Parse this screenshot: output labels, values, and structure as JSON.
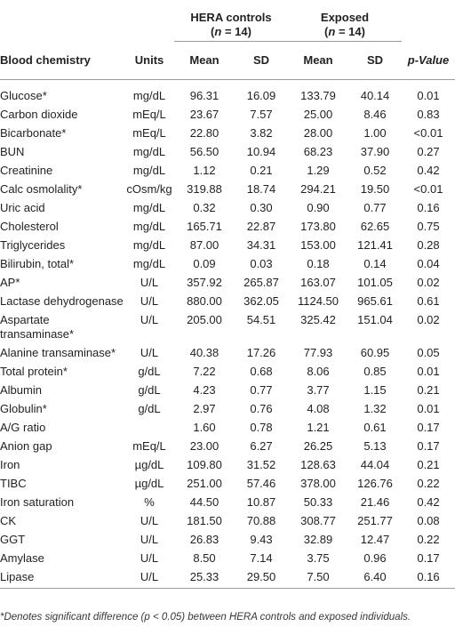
{
  "groups": {
    "controls_line1": "HERA controls",
    "controls_line2": "(n = 14)",
    "exposed_line1": "Exposed",
    "exposed_line2": "(n = 14)"
  },
  "headers": {
    "name": "Blood chemistry",
    "units": "Units",
    "mean1": "Mean",
    "sd1": "SD",
    "mean2": "Mean",
    "sd2": "SD",
    "p": "p-Value"
  },
  "rows": [
    {
      "name": "Glucose*",
      "units": "mg/dL",
      "m1": "96.31",
      "s1": "16.09",
      "m2": "133.79",
      "s2": "40.14",
      "p": "0.01"
    },
    {
      "name": "Carbon dioxide",
      "units": "mEq/L",
      "m1": "23.67",
      "s1": "7.57",
      "m2": "25.00",
      "s2": "8.46",
      "p": "0.83"
    },
    {
      "name": "Bicarbonate*",
      "units": "mEq/L",
      "m1": "22.80",
      "s1": "3.82",
      "m2": "28.00",
      "s2": "1.00",
      "p": "<0.01"
    },
    {
      "name": "BUN",
      "units": "mg/dL",
      "m1": "56.50",
      "s1": "10.94",
      "m2": "68.23",
      "s2": "37.90",
      "p": "0.27"
    },
    {
      "name": "Creatinine",
      "units": "mg/dL",
      "m1": "1.12",
      "s1": "0.21",
      "m2": "1.29",
      "s2": "0.52",
      "p": "0.42"
    },
    {
      "name": "Calc osmolality*",
      "units": "cOsm/kg",
      "m1": "319.88",
      "s1": "18.74",
      "m2": "294.21",
      "s2": "19.50",
      "p": "<0.01"
    },
    {
      "name": "Uric acid",
      "units": "mg/dL",
      "m1": "0.32",
      "s1": "0.30",
      "m2": "0.90",
      "s2": "0.77",
      "p": "0.16"
    },
    {
      "name": "Cholesterol",
      "units": "mg/dL",
      "m1": "165.71",
      "s1": "22.87",
      "m2": "173.80",
      "s2": "62.65",
      "p": "0.75"
    },
    {
      "name": "Triglycerides",
      "units": "mg/dL",
      "m1": "87.00",
      "s1": "34.31",
      "m2": "153.00",
      "s2": "121.41",
      "p": "0.28"
    },
    {
      "name": "Bilirubin, total*",
      "units": "mg/dL",
      "m1": "0.09",
      "s1": "0.03",
      "m2": "0.18",
      "s2": "0.14",
      "p": "0.04"
    },
    {
      "name": "AP*",
      "units": "U/L",
      "m1": "357.92",
      "s1": "265.87",
      "m2": "163.07",
      "s2": "101.05",
      "p": "0.02"
    },
    {
      "name": "Lactase dehydrogenase",
      "units": "U/L",
      "m1": "880.00",
      "s1": "362.05",
      "m2": "1124.50",
      "s2": "965.61",
      "p": "0.61"
    },
    {
      "name": "Aspartate transaminase*",
      "units": "U/L",
      "m1": "205.00",
      "s1": "54.51",
      "m2": "325.42",
      "s2": "151.04",
      "p": "0.02"
    },
    {
      "name": "Alanine transaminase*",
      "units": "U/L",
      "m1": "40.38",
      "s1": "17.26",
      "m2": "77.93",
      "s2": "60.95",
      "p": "0.05"
    },
    {
      "name": "Total protein*",
      "units": "g/dL",
      "m1": "7.22",
      "s1": "0.68",
      "m2": "8.06",
      "s2": "0.85",
      "p": "0.01"
    },
    {
      "name": "Albumin",
      "units": "g/dL",
      "m1": "4.23",
      "s1": "0.77",
      "m2": "3.77",
      "s2": "1.15",
      "p": "0.21"
    },
    {
      "name": "Globulin*",
      "units": "g/dL",
      "m1": "2.97",
      "s1": "0.76",
      "m2": "4.08",
      "s2": "1.32",
      "p": "0.01"
    },
    {
      "name": "A/G ratio",
      "units": "",
      "m1": "1.60",
      "s1": "0.78",
      "m2": "1.21",
      "s2": "0.61",
      "p": "0.17"
    },
    {
      "name": "Anion gap",
      "units": "mEq/L",
      "m1": "23.00",
      "s1": "6.27",
      "m2": "26.25",
      "s2": "5.13",
      "p": "0.17"
    },
    {
      "name": "Iron",
      "units": "µg/dL",
      "m1": "109.80",
      "s1": "31.52",
      "m2": "128.63",
      "s2": "44.04",
      "p": "0.21"
    },
    {
      "name": "TIBC",
      "units": "µg/dL",
      "m1": "251.00",
      "s1": "57.46",
      "m2": "378.00",
      "s2": "126.76",
      "p": "0.22"
    },
    {
      "name": "Iron saturation",
      "units": "%",
      "m1": "44.50",
      "s1": "10.87",
      "m2": "50.33",
      "s2": "21.46",
      "p": "0.42"
    },
    {
      "name": "CK",
      "units": "U/L",
      "m1": "181.50",
      "s1": "70.88",
      "m2": "308.77",
      "s2": "251.77",
      "p": "0.08"
    },
    {
      "name": "GGT",
      "units": "U/L",
      "m1": "26.83",
      "s1": "9.43",
      "m2": "32.89",
      "s2": "12.47",
      "p": "0.22"
    },
    {
      "name": "Amylase",
      "units": "U/L",
      "m1": "8.50",
      "s1": "7.14",
      "m2": "3.75",
      "s2": "0.96",
      "p": "0.17"
    },
    {
      "name": "Lipase",
      "units": "U/L",
      "m1": "25.33",
      "s1": "29.50",
      "m2": "7.50",
      "s2": "6.40",
      "p": "0.16"
    }
  ],
  "footnote": "*Denotes significant difference (p < 0.05) between HERA controls and exposed individuals."
}
